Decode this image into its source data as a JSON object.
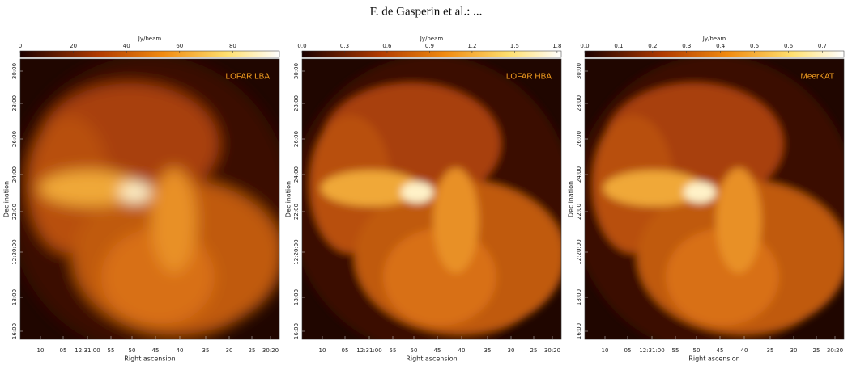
{
  "header": {
    "title": "F. de Gasperin et al.: ..."
  },
  "panels": [
    {
      "label": "LOFAR LBA",
      "colorbar": {
        "label": "Jy/beam",
        "ticks": [
          "0",
          "20",
          "40",
          "60",
          "80"
        ]
      },
      "x_axis": {
        "label": "Right ascension",
        "ticks": [
          "10",
          "05",
          "12:31:00",
          "55",
          "50",
          "45",
          "40",
          "35",
          "30",
          "25",
          "30:20"
        ]
      },
      "y_axis": {
        "label": "Declination",
        "ticks": [
          "30:00",
          "28:00",
          "26:00",
          "24:00",
          "22:00",
          "12:20:00",
          "18:00",
          "16:00"
        ]
      }
    },
    {
      "label": "LOFAR HBA",
      "colorbar": {
        "label": "Jy/beam",
        "ticks": [
          "0.0",
          "0.3",
          "0.6",
          "0.9",
          "1.2",
          "1.5",
          "1.8"
        ]
      },
      "x_axis": {
        "label": "Right ascension",
        "ticks": [
          "10",
          "05",
          "12:31:00",
          "55",
          "50",
          "45",
          "40",
          "35",
          "30",
          "25",
          "30:20"
        ]
      },
      "y_axis": {
        "label": "Declination",
        "ticks": [
          "30:00",
          "28:00",
          "26:00",
          "24:00",
          "22:00",
          "12:20:00",
          "18:00",
          "16:00"
        ]
      }
    },
    {
      "label": "MeerKAT",
      "colorbar": {
        "label": "Jy/beam",
        "ticks": [
          "0.0",
          "0.1",
          "0.2",
          "0.3",
          "0.4",
          "0.5",
          "0.6",
          "0.7"
        ]
      },
      "x_axis": {
        "label": "Right ascension",
        "ticks": [
          "10",
          "05",
          "12:31:00",
          "55",
          "50",
          "45",
          "40",
          "35",
          "30",
          "25",
          "30:20"
        ]
      },
      "y_axis": {
        "label": "Declination",
        "ticks": [
          "30:00",
          "28:00",
          "26:00",
          "24:00",
          "22:00",
          "12:20:00",
          "18:00",
          "16:00"
        ]
      }
    }
  ]
}
